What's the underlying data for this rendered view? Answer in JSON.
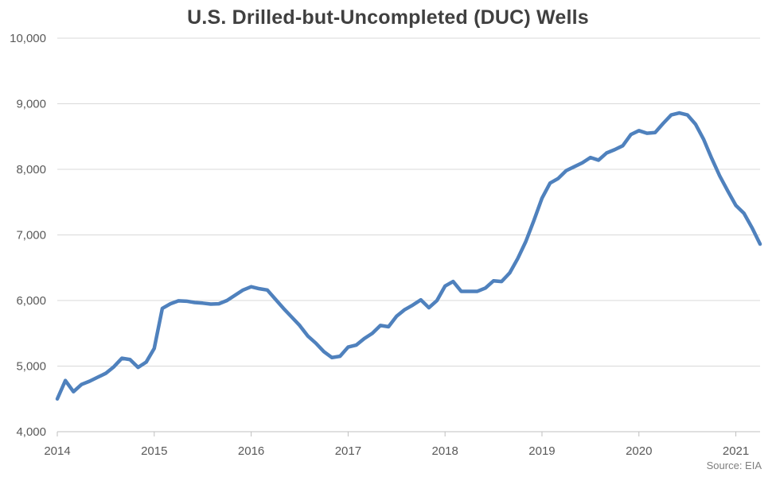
{
  "chart_data": {
    "type": "line",
    "title": "U.S. Drilled-but-Uncompleted (DUC) Wells",
    "source": "Source: EIA",
    "xlabel": "",
    "ylabel": "",
    "ylim": [
      4000,
      10000
    ],
    "yticks": [
      4000,
      5000,
      6000,
      7000,
      8000,
      9000,
      10000
    ],
    "ytick_labels": [
      "4,000",
      "5,000",
      "6,000",
      "7,000",
      "8,000",
      "9,000",
      "10,000"
    ],
    "xlim": [
      2014.0,
      2021.25
    ],
    "xticks": [
      2014,
      2015,
      2016,
      2017,
      2018,
      2019,
      2020,
      2021
    ],
    "xtick_labels": [
      "2014",
      "2015",
      "2016",
      "2017",
      "2018",
      "2019",
      "2020",
      "2021"
    ],
    "grid": true,
    "legend": "none",
    "series": [
      {
        "color": "#4f81bd",
        "x": [
          "2014-01",
          "2014-02",
          "2014-03",
          "2014-04",
          "2014-05",
          "2014-06",
          "2014-07",
          "2014-08",
          "2014-09",
          "2014-10",
          "2014-11",
          "2014-12",
          "2015-01",
          "2015-02",
          "2015-03",
          "2015-04",
          "2015-05",
          "2015-06",
          "2015-07",
          "2015-08",
          "2015-09",
          "2015-10",
          "2015-11",
          "2015-12",
          "2016-01",
          "2016-02",
          "2016-03",
          "2016-04",
          "2016-05",
          "2016-06",
          "2016-07",
          "2016-08",
          "2016-09",
          "2016-10",
          "2016-11",
          "2016-12",
          "2017-01",
          "2017-02",
          "2017-03",
          "2017-04",
          "2017-05",
          "2017-06",
          "2017-07",
          "2017-08",
          "2017-09",
          "2017-10",
          "2017-11",
          "2017-12",
          "2018-01",
          "2018-02",
          "2018-03",
          "2018-04",
          "2018-05",
          "2018-06",
          "2018-07",
          "2018-08",
          "2018-09",
          "2018-10",
          "2018-11",
          "2018-12",
          "2019-01",
          "2019-02",
          "2019-03",
          "2019-04",
          "2019-05",
          "2019-06",
          "2019-07",
          "2019-08",
          "2019-09",
          "2019-10",
          "2019-11",
          "2019-12",
          "2020-01",
          "2020-02",
          "2020-03",
          "2020-04",
          "2020-05",
          "2020-06",
          "2020-07",
          "2020-08",
          "2020-09",
          "2020-10",
          "2020-11",
          "2020-12",
          "2021-01",
          "2021-02",
          "2021-03",
          "2021-04"
        ],
        "values": [
          4500,
          4780,
          4610,
          4720,
          4770,
          4830,
          4890,
          4990,
          5120,
          5100,
          4980,
          5060,
          5270,
          5880,
          5950,
          5995,
          5990,
          5970,
          5960,
          5945,
          5950,
          6000,
          6080,
          6160,
          6210,
          6180,
          6160,
          6020,
          5880,
          5750,
          5620,
          5460,
          5350,
          5220,
          5130,
          5150,
          5290,
          5320,
          5420,
          5500,
          5620,
          5600,
          5760,
          5860,
          5930,
          6010,
          5890,
          6000,
          6220,
          6290,
          6140,
          6140,
          6140,
          6190,
          6300,
          6290,
          6420,
          6640,
          6900,
          7220,
          7560,
          7790,
          7860,
          7980,
          8040,
          8100,
          8180,
          8140,
          8250,
          8300,
          8360,
          8530,
          8590,
          8550,
          8560,
          8700,
          8830,
          8860,
          8830,
          8690,
          8460,
          8170,
          7900,
          7670,
          7450,
          7330,
          7110,
          6860
        ]
      }
    ]
  }
}
